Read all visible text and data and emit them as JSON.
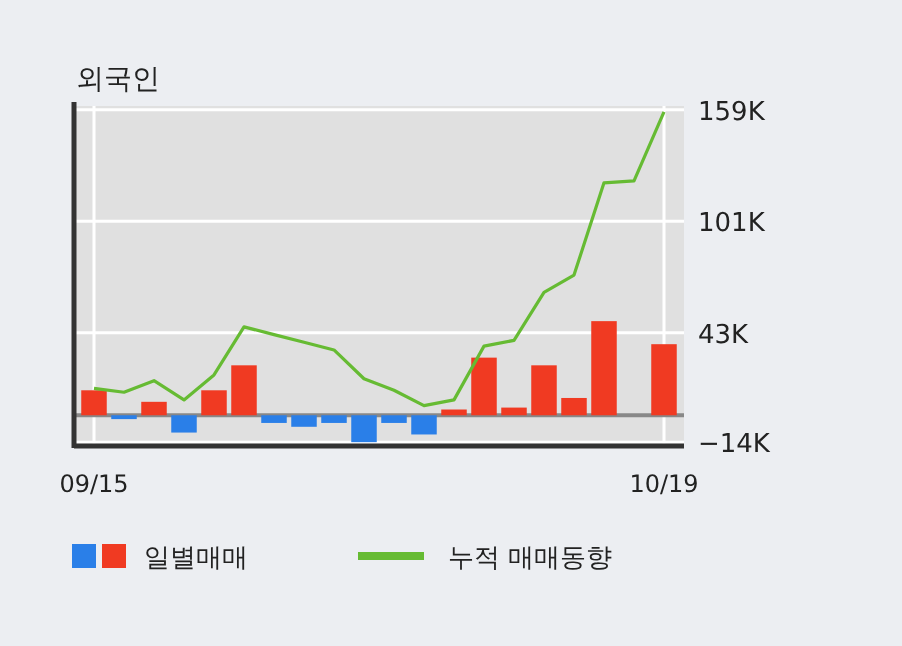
{
  "chart_data": {
    "type": "bar",
    "title": "외국인",
    "categories": [
      "09/15",
      null,
      null,
      null,
      null,
      null,
      null,
      null,
      null,
      null,
      null,
      null,
      null,
      null,
      null,
      null,
      null,
      null,
      null,
      "10/19"
    ],
    "series": [
      {
        "name": "일별매매",
        "colors": [
          "#f03a22",
          "#2a7fe8",
          "#f03a22",
          "#2a7fe8",
          "#f03a22",
          "#f03a22",
          "#2a7fe8",
          "#2a7fe8",
          "#2a7fe8",
          "#2a7fe8",
          "#2a7fe8",
          "#2a7fe8",
          "#f03a22",
          "#f03a22",
          "#f03a22",
          "#f03a22",
          "#f03a22",
          "#f03a22",
          "#f03a22",
          "#f03a22"
        ],
        "values": [
          13,
          -2,
          7,
          -9,
          13,
          26,
          -4,
          -6,
          -4,
          -14,
          -4,
          -10,
          3,
          30,
          4,
          26,
          9,
          49,
          0,
          37
        ]
      },
      {
        "name": "누적 매매동향",
        "type": "line",
        "color": "#66bb33",
        "values": [
          14,
          12,
          18,
          8,
          21,
          46,
          42,
          38,
          34,
          19,
          13,
          5,
          8,
          36,
          39,
          64,
          73,
          121,
          122,
          158
        ]
      }
    ],
    "ylim": [
      -16,
      161
    ],
    "yticks": [
      {
        "value": 159,
        "label": "159K"
      },
      {
        "value": 101,
        "label": "101K"
      },
      {
        "value": 43,
        "label": "43K"
      },
      {
        "value": -14,
        "label": "−14K"
      }
    ],
    "grid": true,
    "legend": "bottom"
  }
}
